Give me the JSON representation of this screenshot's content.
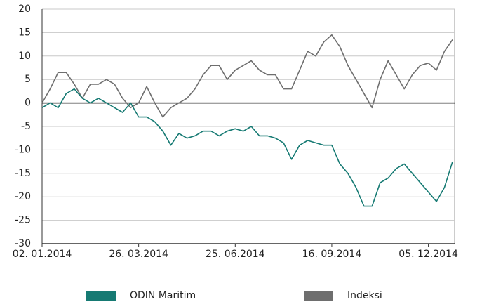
{
  "chart_data": {
    "type": "line",
    "categories": [
      "02. 01.2014",
      null,
      null,
      null,
      null,
      null,
      null,
      null,
      null,
      null,
      null,
      null,
      "26. 03.2014",
      null,
      null,
      null,
      null,
      null,
      null,
      null,
      null,
      null,
      null,
      null,
      "25. 06.2014",
      null,
      null,
      null,
      null,
      null,
      null,
      null,
      null,
      null,
      null,
      null,
      "16. 09.2014",
      null,
      null,
      null,
      null,
      null,
      null,
      null,
      null,
      null,
      null,
      null,
      "05. 12.2014",
      null,
      null,
      null
    ],
    "series": [
      {
        "name": "ODIN Maritim",
        "color": "#167a73",
        "values": [
          -1,
          0,
          -1,
          2,
          3,
          1,
          0,
          1,
          0,
          -1,
          -2,
          0,
          -3,
          -3,
          -4,
          -6,
          -9,
          -6.5,
          -7.5,
          -7,
          -6,
          -6,
          -7,
          -6,
          -5.5,
          -6,
          -5,
          -7,
          -7,
          -7.5,
          -8.5,
          -12,
          -9,
          -8,
          -8.5,
          -9,
          -9,
          -13,
          -15,
          -18,
          -22,
          -22,
          -17,
          -16,
          -14,
          -13,
          -15,
          -17,
          -19,
          -21,
          -18,
          -12.5
        ]
      },
      {
        "name": "Indeksi",
        "color": "#6e6e6e",
        "values": [
          0,
          3,
          6.5,
          6.5,
          4,
          1,
          4,
          4,
          5,
          4,
          1,
          -1,
          0,
          3.5,
          0,
          -3,
          -1,
          0,
          1,
          3,
          6,
          8,
          8,
          5,
          7,
          8,
          9,
          7,
          6,
          6,
          3,
          3,
          7,
          11,
          10,
          13,
          14.5,
          12,
          8,
          5,
          2,
          -1,
          5,
          9,
          6,
          3,
          6,
          8,
          8.5,
          7,
          11,
          13.5
        ]
      }
    ],
    "ylim": [
      -30,
      20
    ],
    "yticks": [
      -30,
      -25,
      -20,
      -15,
      -10,
      -5,
      0,
      5,
      10,
      15,
      20
    ],
    "grid": true,
    "legend": "bottom"
  }
}
